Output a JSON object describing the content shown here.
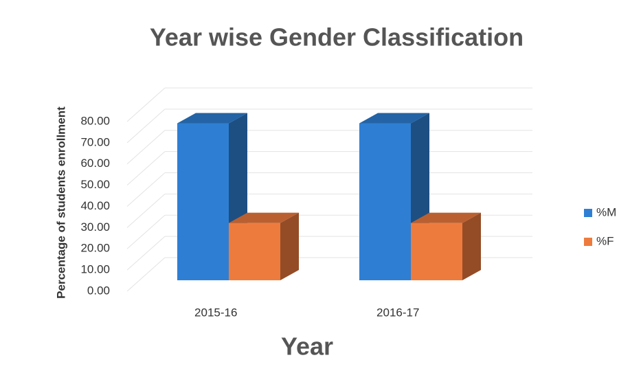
{
  "chart_data": {
    "type": "bar3d",
    "title": "Year wise Gender Classification",
    "x_label": "Year",
    "y_label": "Percentage of students enrollment",
    "categories": [
      "2015-16",
      "2016-17"
    ],
    "series": [
      {
        "name": "%M",
        "color": "#2e7fd4",
        "values": [
          74,
          74
        ]
      },
      {
        "name": "%F",
        "color": "#ee7b3e",
        "values": [
          27,
          27
        ]
      }
    ],
    "ylim": [
      0,
      80
    ],
    "yticks": [
      {
        "value": 0,
        "label": "0.00"
      },
      {
        "value": 10,
        "label": "10.00"
      },
      {
        "value": 20,
        "label": "20.00"
      },
      {
        "value": 30,
        "label": "30.00"
      },
      {
        "value": 40,
        "label": "40.00"
      },
      {
        "value": 50,
        "label": "50.00"
      },
      {
        "value": 60,
        "label": "60.00"
      },
      {
        "value": 70,
        "label": "70.00"
      },
      {
        "value": 80,
        "label": "80.00"
      }
    ],
    "grid": true,
    "legend": "right"
  }
}
